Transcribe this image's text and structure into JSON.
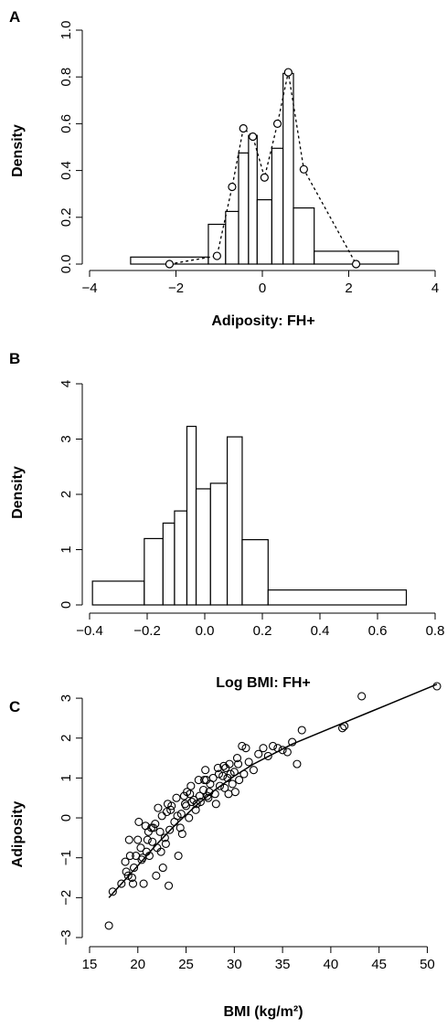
{
  "chart_data": [
    {
      "panel": "A",
      "type": "bar",
      "xlabel": "Adiposity: FH+",
      "ylabel": "Density",
      "xlim": [
        -4,
        4
      ],
      "ylim": [
        0,
        1.0
      ],
      "xticks": [
        -4,
        -2,
        0,
        2,
        4
      ],
      "yticks": [
        0.0,
        0.2,
        0.4,
        0.6,
        0.8,
        1.0
      ],
      "xtick_labels": [
        "−4",
        "−2",
        "0",
        "2",
        "4"
      ],
      "ytick_labels": [
        "0.0",
        "0.2",
        "0.4",
        "0.6",
        "0.8",
        "1.0"
      ],
      "histogram": [
        {
          "x0": -3.05,
          "x1": -1.25,
          "density": 0.03
        },
        {
          "x0": -1.25,
          "x1": -0.85,
          "density": 0.17
        },
        {
          "x0": -0.85,
          "x1": -0.55,
          "density": 0.225
        },
        {
          "x0": -0.55,
          "x1": -0.32,
          "density": 0.475
        },
        {
          "x0": -0.32,
          "x1": -0.12,
          "density": 0.55
        },
        {
          "x0": -0.12,
          "x1": 0.22,
          "density": 0.275
        },
        {
          "x0": 0.22,
          "x1": 0.48,
          "density": 0.495
        },
        {
          "x0": 0.48,
          "x1": 0.72,
          "density": 0.815
        },
        {
          "x0": 0.72,
          "x1": 1.2,
          "density": 0.24
        },
        {
          "x0": 1.2,
          "x1": 3.15,
          "density": 0.055
        }
      ],
      "density_points": {
        "x": [
          -2.15,
          -1.05,
          -0.7,
          -0.44,
          -0.22,
          0.05,
          0.35,
          0.6,
          0.96,
          2.17
        ],
        "y": [
          0.0,
          0.035,
          0.33,
          0.58,
          0.545,
          0.37,
          0.6,
          0.82,
          0.405,
          0.0
        ]
      }
    },
    {
      "panel": "B",
      "type": "bar",
      "xlabel": "Log BMI: FH+",
      "ylabel": "Density",
      "xlim": [
        -0.4,
        0.8
      ],
      "ylim": [
        0,
        4
      ],
      "xticks": [
        -0.4,
        -0.2,
        0.0,
        0.2,
        0.4,
        0.6,
        0.8
      ],
      "yticks": [
        0,
        1,
        2,
        3,
        4
      ],
      "xtick_labels": [
        "−0.4",
        "−0.2",
        "0.0",
        "0.2",
        "0.4",
        "0.6",
        "0.8"
      ],
      "ytick_labels": [
        "0",
        "1",
        "2",
        "3",
        "4"
      ],
      "histogram": [
        {
          "x0": -0.39,
          "x1": -0.21,
          "density": 0.43
        },
        {
          "x0": -0.21,
          "x1": -0.145,
          "density": 1.2
        },
        {
          "x0": -0.145,
          "x1": -0.105,
          "density": 1.48
        },
        {
          "x0": -0.105,
          "x1": -0.062,
          "density": 1.7
        },
        {
          "x0": -0.062,
          "x1": -0.03,
          "density": 3.23
        },
        {
          "x0": -0.03,
          "x1": 0.02,
          "density": 2.1
        },
        {
          "x0": 0.02,
          "x1": 0.078,
          "density": 2.2
        },
        {
          "x0": 0.078,
          "x1": 0.13,
          "density": 3.04
        },
        {
          "x0": 0.13,
          "x1": 0.22,
          "density": 1.18
        },
        {
          "x0": 0.22,
          "x1": 0.7,
          "density": 0.27
        }
      ]
    },
    {
      "panel": "C",
      "type": "scatter",
      "xlabel": "BMI (kg/m²)",
      "ylabel": "Adiposity",
      "xlim": [
        15,
        51
      ],
      "ylim": [
        -3,
        3.3
      ],
      "xticks": [
        15,
        20,
        25,
        30,
        35,
        40,
        45,
        50
      ],
      "yticks": [
        -3,
        -2,
        -1,
        0,
        1,
        2,
        3
      ],
      "xtick_labels": [
        "15",
        "20",
        "25",
        "30",
        "35",
        "40",
        "45",
        "50"
      ],
      "ytick_labels": [
        "−3",
        "−2",
        "−1",
        "0",
        "1",
        "2",
        "3"
      ],
      "fit_line": {
        "x": [
          17,
          20,
          22,
          24,
          26,
          28,
          30,
          32,
          34,
          36,
          38,
          40,
          42,
          44,
          46,
          48,
          51
        ],
        "y": [
          -2.0,
          -1.2,
          -0.65,
          -0.15,
          0.3,
          0.7,
          1.05,
          1.35,
          1.6,
          1.85,
          2.05,
          2.25,
          2.45,
          2.65,
          2.85,
          3.05,
          3.35
        ]
      },
      "points": {
        "x": [
          17.0,
          17.4,
          18.3,
          18.7,
          19.0,
          19.2,
          19.5,
          18.8,
          19.8,
          20.0,
          19.6,
          20.3,
          20.5,
          20.8,
          21.0,
          21.2,
          20.6,
          21.5,
          21.8,
          22.0,
          21.9,
          22.3,
          22.5,
          22.8,
          23.0,
          22.6,
          23.3,
          23.5,
          23.8,
          24.0,
          24.2,
          24.5,
          24.8,
          25.0,
          25.3,
          25.5,
          25.8,
          26.0,
          26.3,
          26.5,
          26.8,
          27.0,
          27.3,
          27.5,
          27.8,
          28.0,
          28.3,
          28.5,
          28.8,
          29.0,
          29.3,
          29.5,
          29.8,
          30.0,
          30.3,
          30.5,
          30.8,
          31.0,
          31.5,
          32.0,
          32.5,
          33.0,
          33.5,
          34.0,
          34.5,
          35.0,
          35.5,
          36.0,
          36.5,
          37.0,
          41.2,
          41.4,
          43.2,
          51.0,
          19.1,
          20.1,
          21.1,
          22.1,
          23.1,
          24.1,
          25.1,
          26.1,
          27.1,
          28.1,
          29.1,
          30.1,
          19.4,
          20.4,
          21.4,
          22.4,
          23.4,
          24.4,
          25.4,
          26.4,
          27.4,
          28.4,
          29.4,
          30.4,
          20.9,
          22.9,
          24.9,
          26.9,
          28.9,
          23.2,
          27.2,
          31.2,
          24.6,
          29.6,
          21.6,
          25.6
        ],
        "y": [
          -2.7,
          -1.85,
          -1.65,
          -1.1,
          -1.45,
          -0.95,
          -1.65,
          -1.35,
          -0.95,
          -0.55,
          -1.25,
          -0.75,
          -1.0,
          -0.2,
          -0.55,
          -0.95,
          -1.65,
          -0.6,
          -0.15,
          -0.75,
          -1.45,
          -0.35,
          0.05,
          -0.5,
          0.15,
          -1.25,
          -0.3,
          0.3,
          -0.1,
          0.5,
          -0.95,
          0.1,
          0.55,
          0.3,
          0.0,
          0.8,
          0.45,
          0.2,
          0.95,
          0.4,
          0.7,
          1.2,
          0.5,
          0.85,
          1.0,
          0.6,
          1.25,
          0.8,
          1.05,
          0.75,
          1.0,
          1.35,
          0.85,
          1.15,
          1.5,
          0.95,
          1.8,
          1.1,
          1.4,
          1.2,
          1.6,
          1.75,
          1.55,
          1.8,
          1.75,
          1.7,
          1.65,
          1.9,
          1.35,
          2.2,
          2.25,
          2.3,
          3.05,
          3.3,
          -0.55,
          -0.1,
          -0.35,
          0.25,
          0.35,
          0.05,
          0.65,
          0.35,
          0.95,
          0.35,
          1.25,
          0.65,
          -1.5,
          -1.05,
          -0.25,
          -0.85,
          0.2,
          -0.25,
          0.6,
          0.55,
          0.65,
          1.1,
          0.6,
          1.35,
          -0.85,
          -0.65,
          0.35,
          0.95,
          1.3,
          -1.7,
          0.55,
          1.75,
          -0.4,
          1.1,
          -0.25,
          0.4
        ]
      }
    }
  ]
}
